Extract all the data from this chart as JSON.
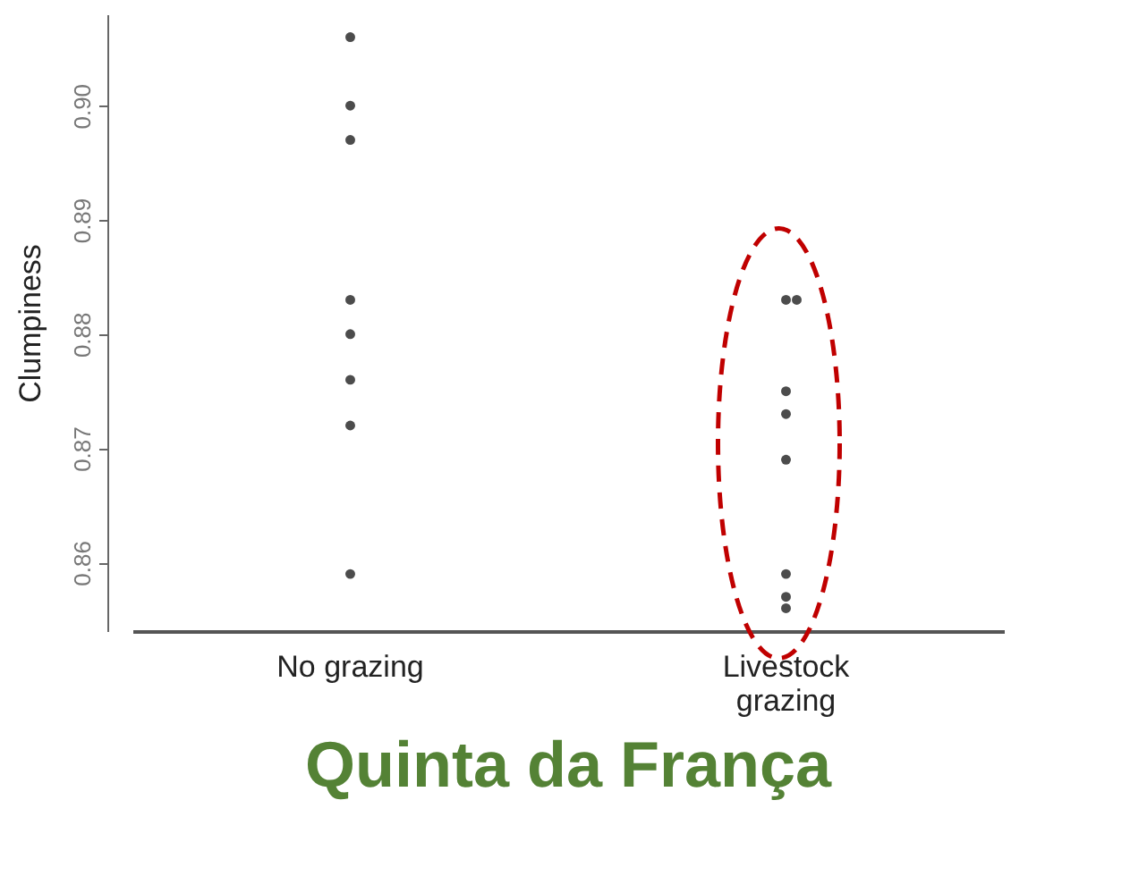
{
  "chart_data": {
    "type": "scatter",
    "title": "Quinta da França",
    "ylabel": "Clumpiness",
    "categories": [
      "No grazing",
      "Livestock grazing"
    ],
    "series": [
      {
        "color": "#000000",
        "x": [
          "No grazing",
          "No grazing",
          "No grazing",
          "No grazing",
          "No grazing",
          "No grazing",
          "No grazing",
          "No grazing",
          "Livestock grazing",
          "Livestock grazing",
          "Livestock grazing",
          "Livestock grazing",
          "Livestock grazing",
          "Livestock grazing",
          "Livestock grazing",
          "Livestock grazing"
        ],
        "values": [
          0.906,
          0.9,
          0.897,
          0.883,
          0.88,
          0.876,
          0.872,
          0.859,
          0.883,
          0.883,
          0.875,
          0.873,
          0.869,
          0.859,
          0.857,
          0.856
        ]
      }
    ],
    "ylim": [
      0.854,
      0.908
    ],
    "yticks": [
      0.86,
      0.87,
      0.88,
      0.89,
      {
        "value": 0.9,
        "label": "0.90"
      }
    ],
    "grid": false,
    "legend": false,
    "marker": "circle"
  }
}
